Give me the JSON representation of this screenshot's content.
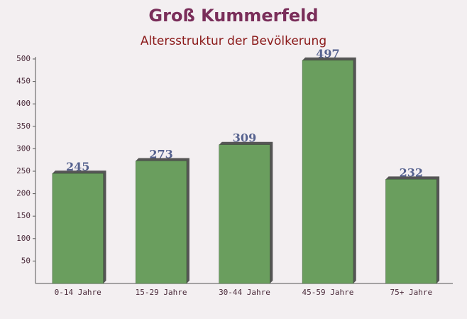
{
  "chart_data": {
    "type": "bar",
    "title": "Groß Kummerfeld",
    "subtitle": "Altersstruktur der Bevölkerung",
    "categories": [
      "0-14 Jahre",
      "15-29 Jahre",
      "30-44 Jahre",
      "45-59 Jahre",
      "75+ Jahre"
    ],
    "values": [
      245,
      273,
      309,
      497,
      232
    ],
    "color": "#6a9e5e",
    "ylim": [
      0,
      500
    ],
    "yticks": [
      50,
      100,
      150,
      200,
      250,
      300,
      350,
      400,
      450,
      500
    ],
    "grid": false
  }
}
